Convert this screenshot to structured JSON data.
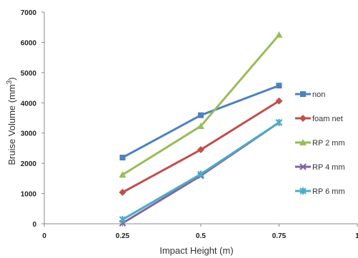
{
  "chart_data": {
    "type": "line",
    "x": [
      0.25,
      0.5,
      0.75
    ],
    "series": [
      {
        "name": "non",
        "values": [
          2190,
          3590,
          4570
        ],
        "color": "#4f81bd",
        "marker": "square"
      },
      {
        "name": "foam net",
        "values": [
          1040,
          2450,
          4060
        ],
        "color": "#c0504d",
        "marker": "diamond"
      },
      {
        "name": "RP 2 mm",
        "values": [
          1620,
          3230,
          6250
        ],
        "color": "#9bbb59",
        "marker": "triangle"
      },
      {
        "name": "RP 4 mm",
        "values": [
          20,
          1590,
          3350
        ],
        "color": "#8064a2",
        "marker": "x"
      },
      {
        "name": "RP 6 mm",
        "values": [
          140,
          1640,
          3350
        ],
        "color": "#4bacc6",
        "marker": "star"
      }
    ],
    "xlim": [
      0,
      1
    ],
    "ylim": [
      0,
      7000
    ],
    "xticks": [
      0,
      0.25,
      0.5,
      0.75,
      1
    ],
    "xtick_labels": [
      "0",
      "0.25",
      "0.5",
      "0.75",
      "1"
    ],
    "yticks": [
      0,
      1000,
      2000,
      3000,
      4000,
      5000,
      6000,
      7000
    ],
    "ytick_labels": [
      "0",
      "1000",
      "2000",
      "3000",
      "4000",
      "5000",
      "6000",
      "7000"
    ],
    "xlabel": "Impact Height (m)",
    "ylabel": "Bruise Volume (mm",
    "ylabel_superscript": "3",
    "ylabel_suffix": ")",
    "grid": false,
    "legend_position": "right"
  }
}
